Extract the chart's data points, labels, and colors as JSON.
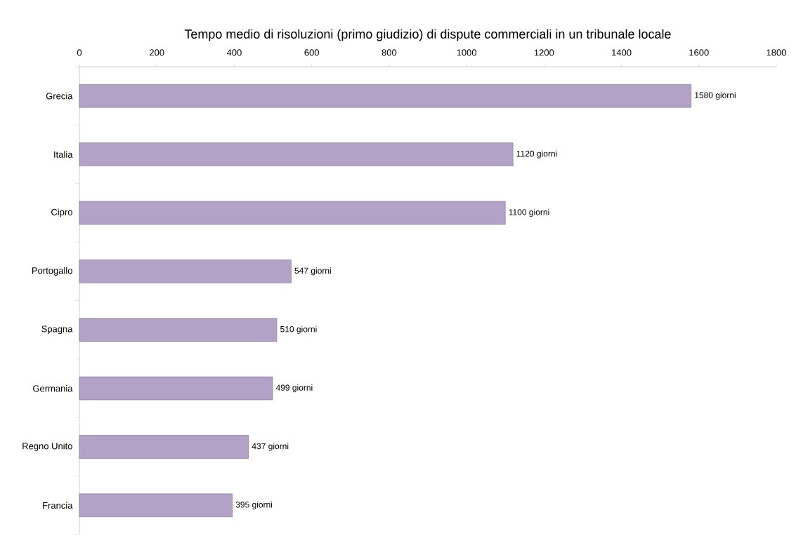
{
  "chart_data": {
    "type": "bar",
    "orientation": "horizontal",
    "title": "Tempo medio di risoluzioni (primo giudizio) di dispute commerciali in un tribunale locale",
    "categories": [
      "Grecia",
      "Italia",
      "Cipro",
      "Portogallo",
      "Spagna",
      "Germania",
      "Regno Unito",
      "Francia"
    ],
    "values": [
      1580,
      1120,
      1100,
      547,
      510,
      499,
      437,
      395
    ],
    "value_labels": [
      "1580 giorni",
      "1120 giorni",
      "1100 giorni",
      "547 giorni",
      "510 giorni",
      "499 giorni",
      "437 giorni",
      "395 giorni"
    ],
    "color": "#b3a2c7",
    "xlim": [
      0,
      1800
    ],
    "xticks": [
      0,
      200,
      400,
      600,
      800,
      1000,
      1200,
      1400,
      1600,
      1800
    ],
    "grid": false
  }
}
